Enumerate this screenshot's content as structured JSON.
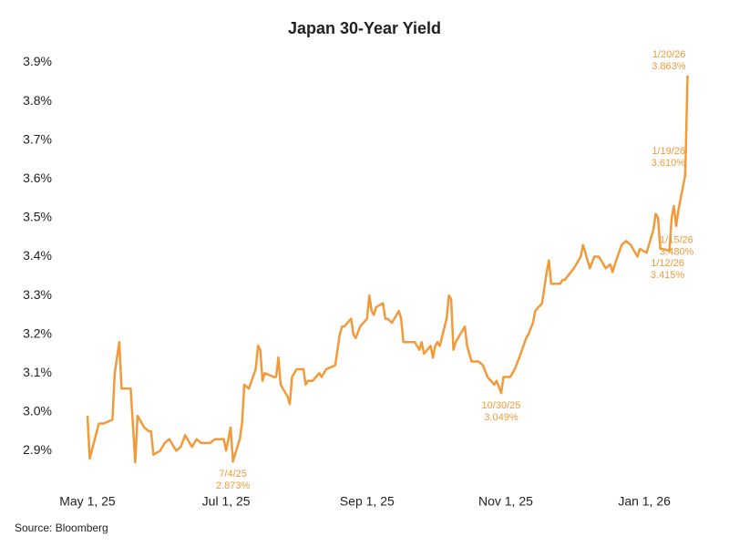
{
  "chart_data": {
    "type": "line",
    "title": "Japan 30-Year Yield",
    "source": "Source: Bloomberg",
    "color": "#f29a3a",
    "xlim": [
      "2025-04-27",
      "2026-01-23"
    ],
    "xticks": [
      {
        "value": "2025-05-01",
        "label": "May 1, 25"
      },
      {
        "value": "2025-07-01",
        "label": "Jul 1, 25"
      },
      {
        "value": "2025-09-01",
        "label": "Sep 1, 25"
      },
      {
        "value": "2025-11-01",
        "label": "Nov 1, 25"
      },
      {
        "value": "2026-01-01",
        "label": "Jan 1, 26"
      }
    ],
    "ylim": [
      2.84,
      3.92
    ],
    "yticks": [
      {
        "value": 2.9,
        "label": "2.9%"
      },
      {
        "value": 3.0,
        "label": "3.0%"
      },
      {
        "value": 3.1,
        "label": "3.1%"
      },
      {
        "value": 3.2,
        "label": "3.2%"
      },
      {
        "value": 3.3,
        "label": "3.3%"
      },
      {
        "value": 3.4,
        "label": "3.4%"
      },
      {
        "value": 3.5,
        "label": "3.5%"
      },
      {
        "value": 3.6,
        "label": "3.6%"
      },
      {
        "value": 3.7,
        "label": "3.7%"
      },
      {
        "value": 3.8,
        "label": "3.8%"
      },
      {
        "value": 3.9,
        "label": "3.9%"
      }
    ],
    "x": [
      "2025-05-01",
      "2025-05-02",
      "2025-05-06",
      "2025-05-08",
      "2025-05-12",
      "2025-05-13",
      "2025-05-15",
      "2025-05-16",
      "2025-05-20",
      "2025-05-22",
      "2025-05-23",
      "2025-05-26",
      "2025-05-28",
      "2025-05-29",
      "2025-05-30",
      "2025-06-02",
      "2025-06-04",
      "2025-06-06",
      "2025-06-09",
      "2025-06-11",
      "2025-06-13",
      "2025-06-16",
      "2025-06-18",
      "2025-06-20",
      "2025-06-24",
      "2025-06-26",
      "2025-06-30",
      "2025-07-01",
      "2025-07-03",
      "2025-07-04",
      "2025-07-07",
      "2025-07-08",
      "2025-07-09",
      "2025-07-11",
      "2025-07-14",
      "2025-07-15",
      "2025-07-16",
      "2025-07-17",
      "2025-07-18",
      "2025-07-22",
      "2025-07-23",
      "2025-07-24",
      "2025-07-25",
      "2025-07-28",
      "2025-07-29",
      "2025-07-30",
      "2025-08-01",
      "2025-08-04",
      "2025-08-05",
      "2025-08-06",
      "2025-08-08",
      "2025-08-11",
      "2025-08-12",
      "2025-08-14",
      "2025-08-18",
      "2025-08-20",
      "2025-08-21",
      "2025-08-22",
      "2025-08-25",
      "2025-08-26",
      "2025-08-27",
      "2025-08-29",
      "2025-09-01",
      "2025-09-02",
      "2025-09-03",
      "2025-09-04",
      "2025-09-05",
      "2025-09-08",
      "2025-09-09",
      "2025-09-10",
      "2025-09-12",
      "2025-09-15",
      "2025-09-16",
      "2025-09-17",
      "2025-09-19",
      "2025-09-22",
      "2025-09-24",
      "2025-09-25",
      "2025-09-26",
      "2025-09-29",
      "2025-09-30",
      "2025-10-01",
      "2025-10-02",
      "2025-10-03",
      "2025-10-06",
      "2025-10-07",
      "2025-10-08",
      "2025-10-09",
      "2025-10-10",
      "2025-10-14",
      "2025-10-15",
      "2025-10-17",
      "2025-10-20",
      "2025-10-22",
      "2025-10-24",
      "2025-10-27",
      "2025-10-28",
      "2025-10-30",
      "2025-10-31",
      "2025-11-03",
      "2025-11-05",
      "2025-11-07",
      "2025-11-10",
      "2025-11-11",
      "2025-11-13",
      "2025-11-14",
      "2025-11-17",
      "2025-11-19",
      "2025-11-20",
      "2025-11-21",
      "2025-11-25",
      "2025-11-26",
      "2025-11-27",
      "2025-12-01",
      "2025-12-03",
      "2025-12-04",
      "2025-12-05",
      "2025-12-08",
      "2025-12-10",
      "2025-12-12",
      "2025-12-15",
      "2025-12-17",
      "2025-12-18",
      "2025-12-19",
      "2025-12-22",
      "2025-12-24",
      "2025-12-26",
      "2025-12-29",
      "2025-12-30",
      "2026-01-02",
      "2026-01-05",
      "2026-01-06",
      "2026-01-07",
      "2026-01-08",
      "2026-01-09",
      "2026-01-12",
      "2026-01-13",
      "2026-01-14",
      "2026-01-15",
      "2026-01-16",
      "2026-01-19",
      "2026-01-20"
    ],
    "values": [
      2.99,
      2.88,
      2.97,
      2.97,
      2.98,
      3.1,
      3.18,
      3.06,
      3.06,
      2.87,
      2.99,
      2.96,
      2.95,
      2.95,
      2.89,
      2.9,
      2.92,
      2.93,
      2.9,
      2.91,
      2.94,
      2.91,
      2.93,
      2.92,
      2.92,
      2.93,
      2.93,
      2.9,
      2.96,
      2.873,
      2.93,
      2.97,
      3.07,
      3.06,
      3.11,
      3.17,
      3.16,
      3.08,
      3.1,
      3.09,
      3.09,
      3.14,
      3.07,
      3.04,
      3.02,
      3.09,
      3.11,
      3.11,
      3.07,
      3.08,
      3.08,
      3.1,
      3.09,
      3.11,
      3.12,
      3.2,
      3.22,
      3.22,
      3.24,
      3.2,
      3.19,
      3.22,
      3.24,
      3.3,
      3.26,
      3.25,
      3.27,
      3.28,
      3.24,
      3.24,
      3.23,
      3.26,
      3.24,
      3.18,
      3.18,
      3.18,
      3.16,
      3.18,
      3.15,
      3.17,
      3.14,
      3.17,
      3.18,
      3.17,
      3.24,
      3.3,
      3.29,
      3.16,
      3.18,
      3.22,
      3.17,
      3.13,
      3.13,
      3.12,
      3.09,
      3.07,
      3.08,
      3.049,
      3.09,
      3.09,
      3.11,
      3.14,
      3.19,
      3.2,
      3.23,
      3.26,
      3.28,
      3.36,
      3.39,
      3.33,
      3.33,
      3.34,
      3.34,
      3.37,
      3.39,
      3.4,
      3.43,
      3.37,
      3.4,
      3.4,
      3.37,
      3.38,
      3.36,
      3.38,
      3.43,
      3.44,
      3.43,
      3.4,
      3.42,
      3.41,
      3.47,
      3.51,
      3.5,
      3.42,
      3.42,
      3.415,
      3.5,
      3.53,
      3.48,
      3.52,
      3.61,
      3.863
    ],
    "annotations": [
      {
        "x": "2025-07-04",
        "y": 2.873,
        "date_label": "7/4/25",
        "value_label": "2.873%"
      },
      {
        "x": "2025-10-30",
        "y": 3.049,
        "date_label": "10/30/25",
        "value_label": "3.049%"
      },
      {
        "x": "2026-01-12",
        "y": 3.415,
        "date_label": "1/12/26",
        "value_label": "3.415%"
      },
      {
        "x": "2026-01-15",
        "y": 3.48,
        "date_label": "1/15/26",
        "value_label": "3.480%"
      },
      {
        "x": "2026-01-19",
        "y": 3.61,
        "date_label": "1/19/26",
        "value_label": "3.610%"
      },
      {
        "x": "2026-01-20",
        "y": 3.863,
        "date_label": "1/20/26",
        "value_label": "3.863%"
      }
    ]
  }
}
